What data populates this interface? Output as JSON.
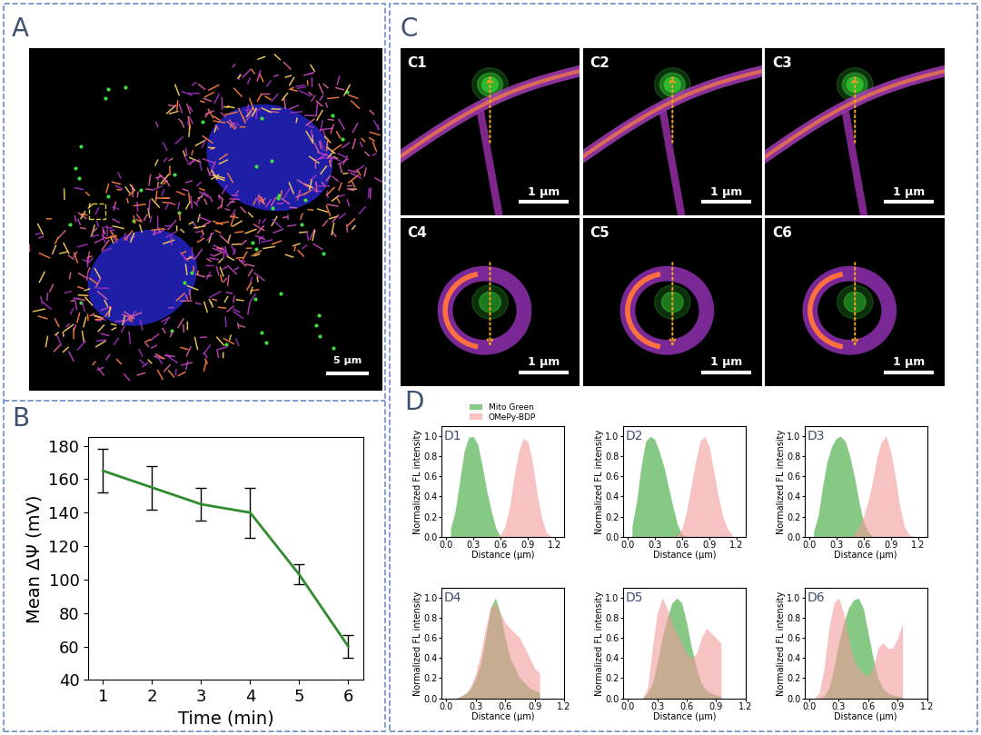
{
  "panel_labels": [
    "A",
    "B",
    "C",
    "D"
  ],
  "images": {
    "A": {
      "scale_bar": "5 μm"
    },
    "C": [
      {
        "label": "C1",
        "scale_bar": "1 μm"
      },
      {
        "label": "C2",
        "scale_bar": "1 μm"
      },
      {
        "label": "C3",
        "scale_bar": "1 μm"
      },
      {
        "label": "C4",
        "scale_bar": "1 μm"
      },
      {
        "label": "C5",
        "scale_bar": "1 μm"
      },
      {
        "label": "C6",
        "scale_bar": "1 μm"
      }
    ]
  },
  "chart_data": [
    {
      "type": "line",
      "label": "B",
      "x_label": "Time (min)",
      "y_label": "Mean ΔΨ (mV)",
      "x": [
        1,
        2,
        3,
        4,
        5,
        6
      ],
      "values": [
        165,
        155,
        145,
        140,
        103,
        60
      ],
      "errors": [
        13,
        13,
        10,
        15,
        6,
        7
      ],
      "color": "#2e8b2e",
      "line_style": "solid",
      "xlim": [
        0.7,
        6.3
      ],
      "ylim": [
        40,
        185
      ],
      "xticks": [
        1,
        2,
        3,
        4,
        5,
        6
      ],
      "yticks": [
        40,
        60,
        80,
        100,
        120,
        140,
        160,
        180
      ]
    },
    {
      "type": "area",
      "label": "D1",
      "x_label": "Distance (μm)",
      "y_label": "Normalized FL intensity",
      "legend": "upper center",
      "xlim": [
        -0.05,
        1.3
      ],
      "ylim": [
        0,
        1.1
      ],
      "xticks": [
        {
          "value": 0,
          "label": "0.0"
        },
        {
          "value": 0.3,
          "label": "0.3"
        },
        {
          "value": 0.6,
          "label": "0.6"
        },
        {
          "value": 0.9,
          "label": "0.9"
        },
        {
          "value": 1.2,
          "label": "1.2"
        }
      ],
      "yticks": [
        {
          "value": 0,
          "label": "0.0"
        },
        {
          "value": 0.2,
          "label": "0.2"
        },
        {
          "value": 0.4,
          "label": "0.4"
        },
        {
          "value": 0.6,
          "label": "0.6"
        },
        {
          "value": 0.8,
          "label": "0.8"
        },
        {
          "value": 1,
          "label": "1.0"
        }
      ],
      "series": [
        {
          "name": "Mito Green",
          "color": "#5cb85c",
          "x": [
            0.05,
            0.1,
            0.15,
            0.2,
            0.25,
            0.3,
            0.35,
            0.4,
            0.45,
            0.5,
            0.55,
            0.6,
            0.65,
            0.7,
            0.75,
            0.8,
            0.85,
            0.9,
            0.95,
            1.0,
            1.05,
            1.1,
            1.15
          ],
          "values": [
            0.08,
            0.25,
            0.55,
            0.85,
            0.99,
            1.0,
            0.92,
            0.7,
            0.45,
            0.25,
            0.08,
            0.0,
            0,
            0,
            0,
            0,
            0,
            0,
            0,
            0,
            0,
            0,
            0
          ]
        },
        {
          "name": "OMePy-BDP",
          "color": "#f29a9a",
          "x": [
            0.05,
            0.1,
            0.15,
            0.2,
            0.25,
            0.3,
            0.35,
            0.4,
            0.45,
            0.5,
            0.55,
            0.6,
            0.65,
            0.7,
            0.75,
            0.8,
            0.85,
            0.9,
            0.95,
            1.0,
            1.05,
            1.1,
            1.15
          ],
          "values": [
            0,
            0,
            0,
            0,
            0,
            0,
            0,
            0,
            0,
            0,
            0,
            0.02,
            0.1,
            0.3,
            0.6,
            0.85,
            0.98,
            0.95,
            0.75,
            0.45,
            0.2,
            0.05,
            0.0
          ]
        }
      ]
    },
    {
      "type": "area",
      "label": "D2",
      "x_label": "Distance (μm)",
      "y_label": "Normalized FL intensity",
      "xlim": [
        -0.05,
        1.3
      ],
      "ylim": [
        0,
        1.1
      ],
      "xticks": [
        {
          "value": 0,
          "label": "0.0"
        },
        {
          "value": 0.3,
          "label": "0.3"
        },
        {
          "value": 0.6,
          "label": "0.6"
        },
        {
          "value": 0.9,
          "label": "0.9"
        },
        {
          "value": 1.2,
          "label": "1.2"
        }
      ],
      "yticks": [
        {
          "value": 0,
          "label": "0.0"
        },
        {
          "value": 0.2,
          "label": "0.2"
        },
        {
          "value": 0.4,
          "label": "0.4"
        },
        {
          "value": 0.6,
          "label": "0.6"
        },
        {
          "value": 0.8,
          "label": "0.8"
        },
        {
          "value": 1,
          "label": "1.0"
        }
      ],
      "series": [
        {
          "name": "Mito Green",
          "color": "#5cb85c",
          "x": [
            0.05,
            0.1,
            0.15,
            0.2,
            0.25,
            0.3,
            0.35,
            0.4,
            0.45,
            0.5,
            0.55,
            0.6,
            0.65,
            0.7,
            0.75,
            0.8,
            0.85,
            0.9,
            0.95,
            1.0,
            1.05,
            1.1,
            1.15
          ],
          "values": [
            0.1,
            0.35,
            0.7,
            0.95,
            1.0,
            0.97,
            0.85,
            0.7,
            0.5,
            0.3,
            0.12,
            0.02,
            0,
            0,
            0,
            0,
            0,
            0,
            0,
            0,
            0,
            0,
            0
          ]
        },
        {
          "name": "OMePy-BDP",
          "color": "#f29a9a",
          "x": [
            0.05,
            0.1,
            0.15,
            0.2,
            0.25,
            0.3,
            0.35,
            0.4,
            0.45,
            0.5,
            0.55,
            0.6,
            0.65,
            0.7,
            0.75,
            0.8,
            0.85,
            0.9,
            0.95,
            1.0,
            1.05,
            1.1,
            1.15
          ],
          "values": [
            0,
            0,
            0,
            0,
            0,
            0,
            0,
            0,
            0,
            0,
            0.02,
            0.08,
            0.25,
            0.5,
            0.75,
            0.95,
            1.0,
            0.9,
            0.65,
            0.4,
            0.2,
            0.08,
            0.02
          ]
        }
      ]
    },
    {
      "type": "area",
      "label": "D3",
      "x_label": "Distance (μm)",
      "y_label": "Normalized FL intensity",
      "xlim": [
        -0.05,
        1.3
      ],
      "ylim": [
        0,
        1.1
      ],
      "xticks": [
        {
          "value": 0,
          "label": "0.0"
        },
        {
          "value": 0.3,
          "label": "0.3"
        },
        {
          "value": 0.6,
          "label": "0.6"
        },
        {
          "value": 0.9,
          "label": "0.9"
        },
        {
          "value": 1.2,
          "label": "1.2"
        }
      ],
      "yticks": [
        {
          "value": 0,
          "label": "0.0"
        },
        {
          "value": 0.2,
          "label": "0.2"
        },
        {
          "value": 0.4,
          "label": "0.4"
        },
        {
          "value": 0.6,
          "label": "0.6"
        },
        {
          "value": 0.8,
          "label": "0.8"
        },
        {
          "value": 1,
          "label": "1.0"
        }
      ],
      "series": [
        {
          "name": "Mito Green",
          "color": "#5cb85c",
          "x": [
            0.05,
            0.1,
            0.15,
            0.2,
            0.25,
            0.3,
            0.35,
            0.4,
            0.45,
            0.5,
            0.55,
            0.6,
            0.65,
            0.7,
            0.75,
            0.8,
            0.85,
            0.9,
            0.95,
            1.0,
            1.05,
            1.1,
            1.15
          ],
          "values": [
            0.05,
            0.2,
            0.5,
            0.75,
            0.9,
            0.98,
            1.0,
            0.95,
            0.8,
            0.6,
            0.35,
            0.15,
            0.05,
            0,
            0,
            0,
            0,
            0,
            0,
            0,
            0,
            0,
            0
          ]
        },
        {
          "name": "OMePy-BDP",
          "color": "#f29a9a",
          "x": [
            0.05,
            0.1,
            0.15,
            0.2,
            0.25,
            0.3,
            0.35,
            0.4,
            0.45,
            0.5,
            0.55,
            0.6,
            0.65,
            0.7,
            0.75,
            0.8,
            0.85,
            0.9,
            0.95,
            1.0,
            1.05,
            1.1,
            1.15
          ],
          "values": [
            0,
            0,
            0,
            0,
            0,
            0,
            0,
            0,
            0,
            0.02,
            0.1,
            0.2,
            0.35,
            0.55,
            0.8,
            0.95,
            1.0,
            0.85,
            0.6,
            0.3,
            0.1,
            0.02,
            0
          ]
        }
      ]
    },
    {
      "type": "area",
      "label": "D4",
      "x_label": "Distance (μm)",
      "y_label": "Normalized FL intensity",
      "xlim": [
        -0.05,
        1.2
      ],
      "ylim": [
        0,
        1.1
      ],
      "xticks": [
        {
          "value": 0,
          "label": "0.0"
        },
        {
          "value": 0.3,
          "label": "0.3"
        },
        {
          "value": 0.6,
          "label": "0.6"
        },
        {
          "value": 0.9,
          "label": "0.9"
        },
        {
          "value": 1.2,
          "label": "1.2"
        }
      ],
      "yticks": [
        {
          "value": 0,
          "label": "0.0"
        },
        {
          "value": 0.2,
          "label": "0.2"
        },
        {
          "value": 0.4,
          "label": "0.4"
        },
        {
          "value": 0.6,
          "label": "0.6"
        },
        {
          "value": 0.8,
          "label": "0.8"
        },
        {
          "value": 1,
          "label": "1.0"
        }
      ],
      "series": [
        {
          "name": "Mito Green",
          "color": "#5cb85c",
          "x": [
            0.0,
            0.05,
            0.1,
            0.15,
            0.2,
            0.25,
            0.3,
            0.35,
            0.4,
            0.45,
            0.5,
            0.55,
            0.6,
            0.65,
            0.7,
            0.75,
            0.8,
            0.85,
            0.9,
            0.95
          ],
          "values": [
            0,
            0,
            0,
            0.02,
            0.05,
            0.1,
            0.2,
            0.35,
            0.6,
            0.9,
            1.0,
            0.85,
            0.6,
            0.4,
            0.3,
            0.2,
            0.15,
            0.1,
            0.08,
            0.06
          ]
        },
        {
          "name": "OMePy-BDP",
          "color": "#f29a9a",
          "x": [
            0.0,
            0.05,
            0.1,
            0.15,
            0.2,
            0.25,
            0.3,
            0.35,
            0.4,
            0.45,
            0.5,
            0.55,
            0.6,
            0.65,
            0.7,
            0.75,
            0.8,
            0.85,
            0.9,
            0.95
          ],
          "values": [
            0,
            0,
            0,
            0.02,
            0.05,
            0.12,
            0.25,
            0.45,
            0.7,
            0.9,
            0.95,
            0.85,
            0.75,
            0.7,
            0.65,
            0.6,
            0.5,
            0.4,
            0.3,
            0.25
          ]
        }
      ]
    },
    {
      "type": "area",
      "label": "D5",
      "x_label": "Distance (μm)",
      "y_label": "Normalized FL intensity",
      "xlim": [
        -0.05,
        1.2
      ],
      "ylim": [
        0,
        1.1
      ],
      "xticks": [
        {
          "value": 0,
          "label": "0.0"
        },
        {
          "value": 0.3,
          "label": "0.3"
        },
        {
          "value": 0.6,
          "label": "0.6"
        },
        {
          "value": 0.9,
          "label": "0.9"
        },
        {
          "value": 1.2,
          "label": "1.2"
        }
      ],
      "yticks": [
        {
          "value": 0,
          "label": "0.0"
        },
        {
          "value": 0.2,
          "label": "0.2"
        },
        {
          "value": 0.4,
          "label": "0.4"
        },
        {
          "value": 0.6,
          "label": "0.6"
        },
        {
          "value": 0.8,
          "label": "0.8"
        },
        {
          "value": 1,
          "label": "1.0"
        }
      ],
      "series": [
        {
          "name": "Mito Green",
          "color": "#5cb85c",
          "x": [
            0.0,
            0.05,
            0.1,
            0.15,
            0.2,
            0.25,
            0.3,
            0.35,
            0.4,
            0.45,
            0.5,
            0.55,
            0.6,
            0.65,
            0.7,
            0.75,
            0.8,
            0.85,
            0.9,
            0.95
          ],
          "values": [
            0,
            0,
            0,
            0,
            0.05,
            0.15,
            0.35,
            0.6,
            0.8,
            0.95,
            1.0,
            0.95,
            0.75,
            0.5,
            0.3,
            0.15,
            0.08,
            0.05,
            0.03,
            0.02
          ]
        },
        {
          "name": "OMePy-BDP",
          "color": "#f29a9a",
          "x": [
            0.0,
            0.05,
            0.1,
            0.15,
            0.2,
            0.25,
            0.3,
            0.35,
            0.4,
            0.45,
            0.5,
            0.55,
            0.6,
            0.65,
            0.7,
            0.75,
            0.8,
            0.85,
            0.9,
            0.95
          ],
          "values": [
            0,
            0,
            0,
            0,
            0.1,
            0.5,
            0.85,
            1.0,
            0.9,
            0.75,
            0.65,
            0.55,
            0.45,
            0.4,
            0.45,
            0.6,
            0.7,
            0.65,
            0.6,
            0.55
          ]
        }
      ]
    },
    {
      "type": "area",
      "label": "D6",
      "x_label": "Distance (μm)",
      "y_label": "Normalized FL intensity",
      "xlim": [
        -0.05,
        1.2
      ],
      "ylim": [
        0,
        1.1
      ],
      "xticks": [
        {
          "value": 0,
          "label": "0.0"
        },
        {
          "value": 0.3,
          "label": "0.3"
        },
        {
          "value": 0.6,
          "label": "0.6"
        },
        {
          "value": 0.9,
          "label": "0.9"
        },
        {
          "value": 1.2,
          "label": "1.2"
        }
      ],
      "yticks": [
        {
          "value": 0,
          "label": "0.0"
        },
        {
          "value": 0.2,
          "label": "0.2"
        },
        {
          "value": 0.4,
          "label": "0.4"
        },
        {
          "value": 0.6,
          "label": "0.6"
        },
        {
          "value": 0.8,
          "label": "0.8"
        },
        {
          "value": 1,
          "label": "1.0"
        }
      ],
      "series": [
        {
          "name": "Mito Green",
          "color": "#5cb85c",
          "x": [
            0.0,
            0.05,
            0.1,
            0.15,
            0.2,
            0.25,
            0.3,
            0.35,
            0.4,
            0.45,
            0.5,
            0.55,
            0.6,
            0.65,
            0.7,
            0.75,
            0.8,
            0.85,
            0.9,
            0.95
          ],
          "values": [
            0,
            0,
            0,
            0.02,
            0.1,
            0.3,
            0.55,
            0.75,
            0.9,
            0.98,
            1.0,
            0.9,
            0.65,
            0.4,
            0.2,
            0.1,
            0.05,
            0.03,
            0.02,
            0.01
          ]
        },
        {
          "name": "OMePy-BDP",
          "color": "#f29a9a",
          "x": [
            0.0,
            0.05,
            0.1,
            0.15,
            0.2,
            0.25,
            0.3,
            0.35,
            0.4,
            0.45,
            0.5,
            0.55,
            0.6,
            0.65,
            0.7,
            0.75,
            0.8,
            0.85,
            0.9,
            0.95
          ],
          "values": [
            0,
            0,
            0.05,
            0.3,
            0.7,
            0.95,
            1.0,
            0.85,
            0.6,
            0.4,
            0.3,
            0.25,
            0.22,
            0.3,
            0.5,
            0.55,
            0.5,
            0.5,
            0.6,
            0.75
          ]
        }
      ]
    }
  ]
}
